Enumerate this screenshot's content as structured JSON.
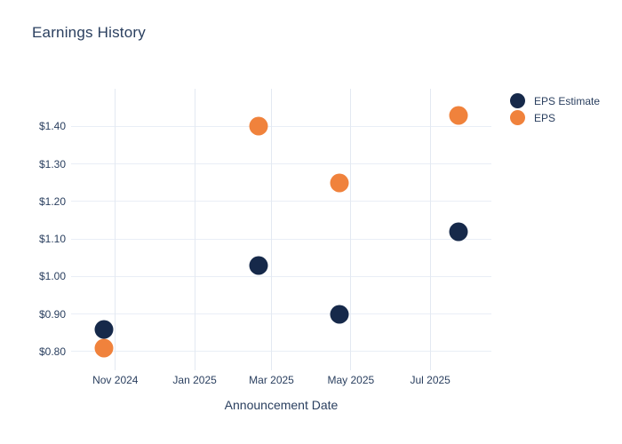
{
  "title": "Earnings History",
  "colors": {
    "background": "#ffffff",
    "text": "#2A3F5F",
    "gridline_horizontal": "#E9EEF6",
    "gridline_vertical": "#E3E9F2",
    "eps_estimate": "#16294A",
    "eps": "#F0823C"
  },
  "legend": {
    "items": [
      {
        "label": "EPS Estimate",
        "color": "#16294A"
      },
      {
        "label": "EPS",
        "color": "#F0823C"
      }
    ]
  },
  "chart_data": {
    "type": "scatter",
    "title": "Earnings History",
    "xlabel": "Announcement Date",
    "ylabel": "",
    "grid": true,
    "legend_position": "outside-top-right",
    "xlim": [
      "2024-09-28",
      "2025-08-17"
    ],
    "ylim": [
      0.75,
      1.5
    ],
    "x_ticks": [
      {
        "date": "2024-11-01",
        "label": "Nov 2024"
      },
      {
        "date": "2025-01-01",
        "label": "Jan 2025"
      },
      {
        "date": "2025-03-01",
        "label": "Mar 2025"
      },
      {
        "date": "2025-05-01",
        "label": "May 2025"
      },
      {
        "date": "2025-07-01",
        "label": "Jul 2025"
      }
    ],
    "y_ticks": [
      {
        "value": 0.8,
        "label": "$0.80"
      },
      {
        "value": 0.9,
        "label": "$0.90"
      },
      {
        "value": 1.0,
        "label": "$1.00"
      },
      {
        "value": 1.1,
        "label": "$1.10"
      },
      {
        "value": 1.2,
        "label": "$1.20"
      },
      {
        "value": 1.3,
        "label": "$1.30"
      },
      {
        "value": 1.4,
        "label": "$1.40"
      }
    ],
    "x": [
      "2024-10-23",
      "2025-02-19",
      "2025-04-22",
      "2025-07-23"
    ],
    "series": [
      {
        "name": "EPS Estimate",
        "color": "#16294A",
        "values": [
          0.86,
          1.03,
          0.9,
          1.12
        ]
      },
      {
        "name": "EPS",
        "color": "#F0823C",
        "values": [
          0.81,
          1.4,
          1.25,
          1.43
        ]
      }
    ]
  }
}
